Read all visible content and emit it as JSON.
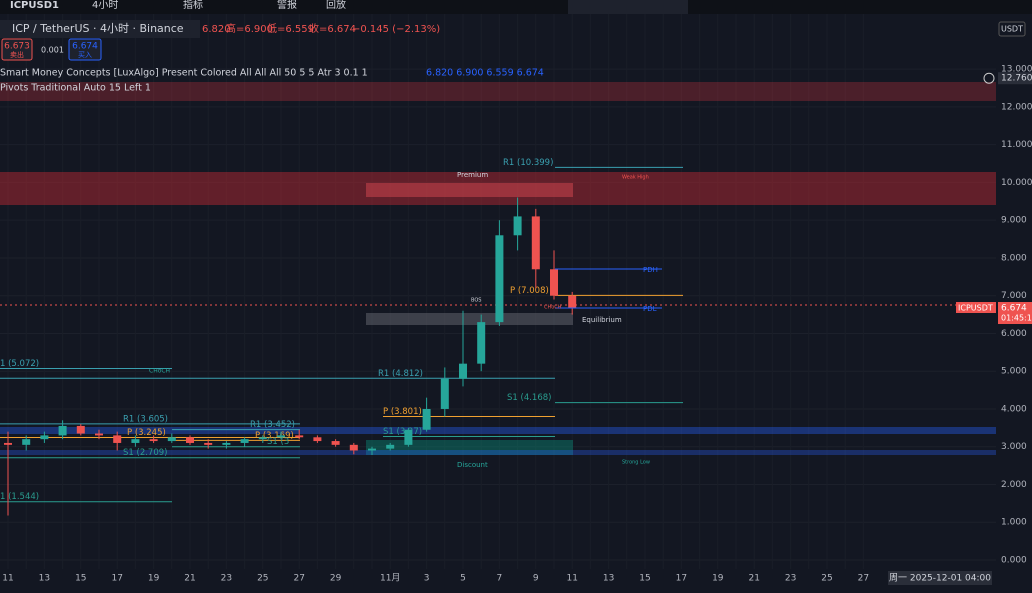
{
  "toolbar": {
    "symbol": "ICPUSD1",
    "interval": "4小时",
    "indicators": "指标",
    "alerts": "警报",
    "replay": "回放"
  },
  "header": {
    "title": "ICP / TetherUS · 4小时 · Binance",
    "open": "6.820",
    "high": "高=6.900",
    "low": "低=6.559",
    "close": "收=6.674",
    "change": "−0.145 (−2.13%)",
    "sell_price": "6.673",
    "sell": "卖出",
    "spread": "0.001",
    "buy_price": "6.674",
    "buy": "买入"
  },
  "indicators": [
    {
      "name": "Smart Money Concepts [LuxAlgo] Present Colored All All All 50 5 5 Atr 3 0.1 1",
      "values": "6.820  6.900  6.559  6.674"
    },
    {
      "name": "Pivots Traditional Auto 15 Left 1"
    }
  ],
  "chart_data": {
    "type": "candlestick",
    "currency": "USDT",
    "categories": [
      "11",
      null,
      "13",
      null,
      "15",
      null,
      "17",
      null,
      "19",
      null,
      "21",
      null,
      "23",
      null,
      "25",
      null,
      "27",
      null,
      "29",
      null,
      null,
      "11月",
      null,
      "3",
      null,
      "5",
      null,
      "7",
      null,
      "9",
      null,
      "11",
      null,
      "13",
      null,
      "15",
      null,
      "17",
      null,
      "19",
      null,
      "21",
      null,
      "23",
      null,
      "25",
      null,
      "27"
    ],
    "open": [
      3.1,
      3.05,
      3.2,
      3.3,
      3.55,
      3.35,
      3.3,
      3.1,
      3.2,
      3.15,
      3.25,
      3.1,
      3.05,
      3.1,
      3.2,
      3.25,
      3.3,
      3.25,
      3.15,
      3.05,
      2.9,
      2.95,
      3.05,
      3.45,
      4.0,
      4.8,
      5.2,
      6.3,
      8.6,
      9.1,
      7.7,
      7.0,
      null,
      null,
      null,
      null,
      null,
      null,
      null,
      null,
      null,
      null,
      null,
      null,
      null,
      null,
      null,
      null
    ],
    "high": [
      3.4,
      3.3,
      3.4,
      3.7,
      3.6,
      3.45,
      3.4,
      3.3,
      3.3,
      3.35,
      3.3,
      3.2,
      3.15,
      3.25,
      3.3,
      3.4,
      3.45,
      3.3,
      3.2,
      3.1,
      3.0,
      3.1,
      3.5,
      4.3,
      5.1,
      6.6,
      6.5,
      9.0,
      9.6,
      9.3,
      8.2,
      7.1,
      null,
      null,
      null,
      null,
      null,
      null,
      null,
      null,
      null,
      null,
      null,
      null,
      null,
      null,
      null,
      null
    ],
    "low": [
      1.18,
      2.9,
      3.1,
      3.2,
      3.3,
      3.2,
      2.9,
      3.0,
      3.1,
      3.1,
      3.05,
      2.95,
      2.95,
      3.0,
      3.1,
      3.2,
      3.2,
      3.1,
      3.0,
      2.8,
      2.78,
      2.9,
      3.0,
      3.4,
      3.8,
      4.6,
      5.0,
      6.2,
      8.2,
      7.2,
      6.9,
      6.5,
      null,
      null,
      null,
      null,
      null,
      null,
      null,
      null,
      null,
      null,
      null,
      null,
      null,
      null,
      null,
      null
    ],
    "close": [
      3.05,
      3.2,
      3.3,
      3.55,
      3.35,
      3.3,
      3.1,
      3.2,
      3.15,
      3.25,
      3.1,
      3.05,
      3.1,
      3.2,
      3.25,
      3.3,
      3.25,
      3.15,
      3.05,
      2.9,
      2.95,
      3.05,
      3.45,
      4.0,
      4.8,
      5.2,
      6.3,
      8.6,
      9.1,
      7.7,
      7.0,
      6.674,
      null,
      null,
      null,
      null,
      null,
      null,
      null,
      null,
      null,
      null,
      null,
      null,
      null,
      null,
      null,
      null
    ],
    "up_color": "#26a69a",
    "down_color": "#ef5350",
    "ylim": [
      0,
      13.6
    ],
    "yticks": [
      {
        "value": 0,
        "label": "0.000"
      },
      {
        "value": 1,
        "label": "1.000"
      },
      {
        "value": 2,
        "label": "2.000"
      },
      {
        "value": 3,
        "label": "3.000"
      },
      {
        "value": 4,
        "label": "4.000"
      },
      {
        "value": 5,
        "label": "5.000"
      },
      {
        "value": 6,
        "label": "6.000"
      },
      {
        "value": 7,
        "label": "7.000"
      },
      {
        "value": 8,
        "label": "8.000"
      },
      {
        "value": 9,
        "label": "9.000"
      },
      {
        "value": 10,
        "label": "10.000"
      },
      {
        "value": 11,
        "label": "11.000"
      },
      {
        "value": 12,
        "label": "12.000"
      },
      {
        "value": 13,
        "label": "13.000"
      }
    ],
    "crosshair": {
      "value": 12.76,
      "label": "12.760"
    },
    "last_price": {
      "symbol": "ICPUSDT",
      "value": 6.674,
      "label": "6.674",
      "countdown": "01:45:1"
    },
    "date_label": "周一 2025-12-01  04:00",
    "levels": [
      {
        "label": "R1 (10.399)",
        "value": 10.399
      },
      {
        "label": "P (7.008)",
        "value": 7.008
      },
      {
        "label": "S1 (4.168)",
        "value": 4.168
      },
      {
        "label": "R1 (4.812)",
        "value": 4.812
      },
      {
        "label": "P (3.801)",
        "value": 3.801
      },
      {
        "label": "S1 (3.27)",
        "value": 3.27
      },
      {
        "label": "R1 (3.605)",
        "value": 3.605
      },
      {
        "label": "P (3.245)",
        "value": 3.245
      },
      {
        "label": "S1 (2.709)",
        "value": 2.709
      },
      {
        "label": "R1 (3.452)",
        "value": 3.452
      },
      {
        "label": "P (3.169)",
        "value": 3.169
      },
      {
        "label": "S1 (3",
        "value": 3
      },
      {
        "label": "1 (5.072)",
        "value": 5.072
      },
      {
        "label": "1 (1.544)",
        "value": 1.544
      }
    ],
    "annotations": [
      "Premium",
      "Weak High",
      "Equilibrium",
      "Discount",
      "Strong Low",
      "PDH",
      "PDL",
      "BOS",
      "CHoCH",
      "CHoCH"
    ]
  }
}
